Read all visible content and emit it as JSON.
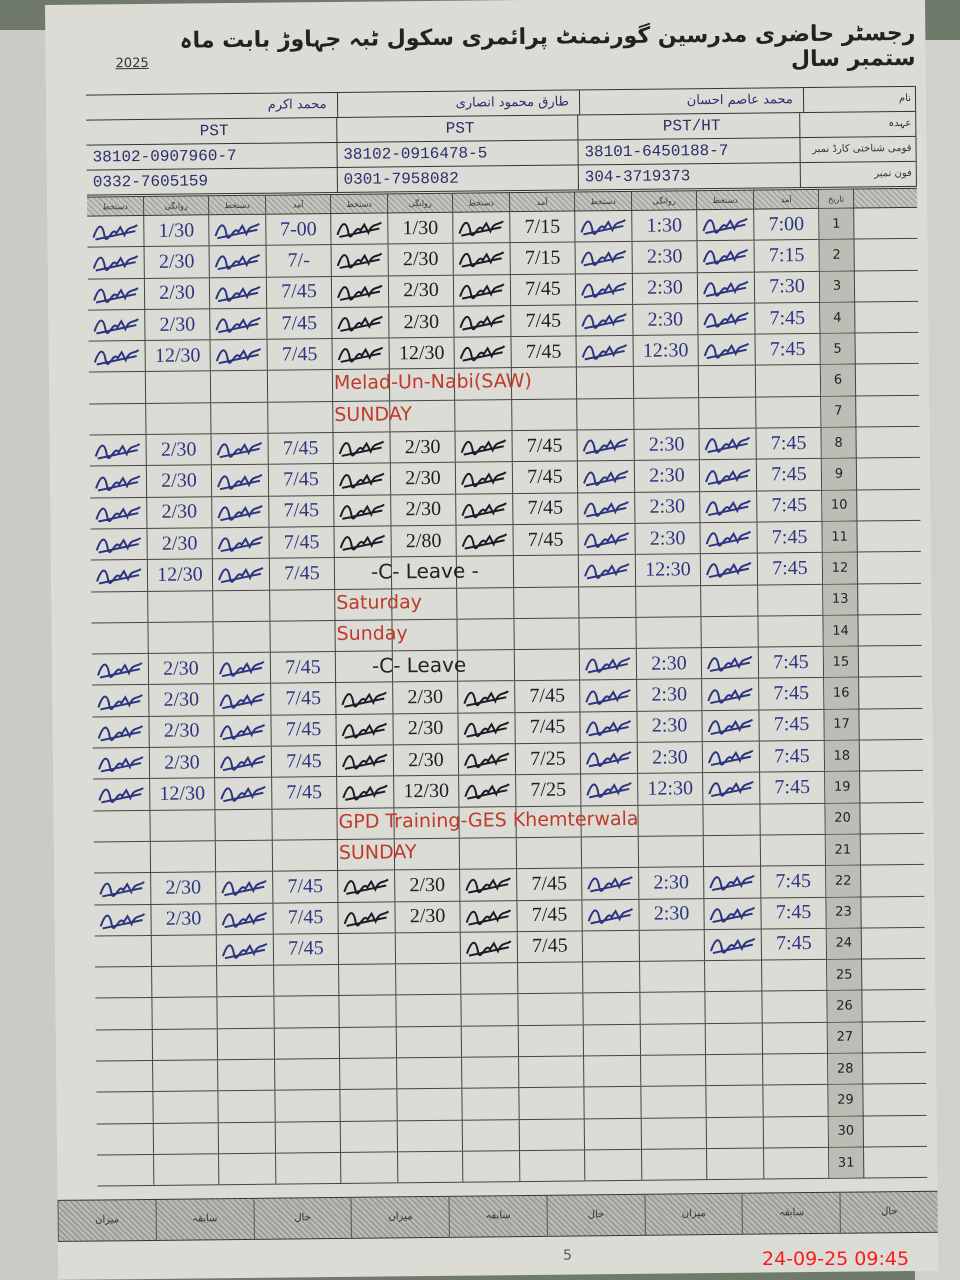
{
  "header": {
    "title": "رجسٹر حاضری مدرسین گورنمنٹ پرائمری سکول ٹبہ جہاوڑ بابت ماہ ستمبر سال",
    "year": "2025"
  },
  "info_labels": {
    "name": "نام",
    "designation": "عہدہ",
    "cnic": "قومی شناختی کارڈ نمبر",
    "phone": "فون نمبر"
  },
  "teachers": [
    {
      "name": "محمد عاصم احسان",
      "designation": "PST/HT",
      "cnic": "38101-6450188-7",
      "phone": "304-3719373"
    },
    {
      "name": "طارق محمود انصاری",
      "designation": "PST",
      "cnic": "38102-0916478-5",
      "phone": "0301-7958082"
    },
    {
      "name": "محمد اکرم",
      "designation": "PST",
      "cnic": "38102-0907960-7",
      "phone": "0332-7605159"
    }
  ],
  "column_headers": {
    "date": "تاریخ",
    "arrival": "آمد",
    "signature": "دستخط",
    "departure": "روانگی"
  },
  "rows": [
    {
      "date": "1",
      "t": [
        [
          "7:00",
          "1:30"
        ],
        [
          "7/15",
          "1/30"
        ],
        [
          "7-00",
          "1/30"
        ]
      ]
    },
    {
      "date": "2",
      "t": [
        [
          "7:15",
          "2:30"
        ],
        [
          "7/15",
          "2/30"
        ],
        [
          "7/-",
          "2/30"
        ]
      ]
    },
    {
      "date": "3",
      "t": [
        [
          "7:30",
          "2:30"
        ],
        [
          "7/45",
          "2/30"
        ],
        [
          "7/45",
          "2/30"
        ]
      ]
    },
    {
      "date": "4",
      "t": [
        [
          "7:45",
          "2:30"
        ],
        [
          "7/45",
          "2/30"
        ],
        [
          "7/45",
          "2/30"
        ]
      ]
    },
    {
      "date": "5",
      "t": [
        [
          "7:45",
          "12:30"
        ],
        [
          "7/45",
          "12/30"
        ],
        [
          "7/45",
          "12/30"
        ]
      ]
    },
    {
      "date": "6",
      "note": "Melad-Un-Nabi(SAW)"
    },
    {
      "date": "7",
      "note": "SUNDAY"
    },
    {
      "date": "8",
      "t": [
        [
          "7:45",
          "2:30"
        ],
        [
          "7/45",
          "2/30"
        ],
        [
          "7/45",
          "2/30"
        ]
      ]
    },
    {
      "date": "9",
      "t": [
        [
          "7:45",
          "2:30"
        ],
        [
          "7/45",
          "2/30"
        ],
        [
          "7/45",
          "2/30"
        ]
      ]
    },
    {
      "date": "10",
      "t": [
        [
          "7:45",
          "2:30"
        ],
        [
          "7/45",
          "2/30"
        ],
        [
          "7/45",
          "2/30"
        ]
      ]
    },
    {
      "date": "11",
      "t": [
        [
          "7:45",
          "2:30"
        ],
        [
          "7/45",
          "2/80"
        ],
        [
          "7/45",
          "2/30"
        ]
      ]
    },
    {
      "date": "12",
      "t": [
        [
          "7:45",
          "12:30"
        ],
        null,
        [
          "7/45",
          "12/30"
        ]
      ],
      "leave": "-C- Leave -"
    },
    {
      "date": "13",
      "note": "Saturday"
    },
    {
      "date": "14",
      "note": "Sunday"
    },
    {
      "date": "15",
      "t": [
        [
          "7:45",
          "2:30"
        ],
        null,
        [
          "7/45",
          "2/30"
        ]
      ],
      "leave": "-C- Leave"
    },
    {
      "date": "16",
      "t": [
        [
          "7:45",
          "2:30"
        ],
        [
          "7/45",
          "2/30"
        ],
        [
          "7/45",
          "2/30"
        ]
      ]
    },
    {
      "date": "17",
      "t": [
        [
          "7:45",
          "2:30"
        ],
        [
          "7/45",
          "2/30"
        ],
        [
          "7/45",
          "2/30"
        ]
      ]
    },
    {
      "date": "18",
      "t": [
        [
          "7:45",
          "2:30"
        ],
        [
          "7/25",
          "2/30"
        ],
        [
          "7/45",
          "2/30"
        ]
      ]
    },
    {
      "date": "19",
      "t": [
        [
          "7:45",
          "12:30"
        ],
        [
          "7/25",
          "12/30"
        ],
        [
          "7/45",
          "12/30"
        ]
      ]
    },
    {
      "date": "20",
      "note": "GPD Training-GES Khemterwala"
    },
    {
      "date": "21",
      "note": "SUNDAY"
    },
    {
      "date": "22",
      "t": [
        [
          "7:45",
          "2:30"
        ],
        [
          "7/45",
          "2/30"
        ],
        [
          "7/45",
          "2/30"
        ]
      ]
    },
    {
      "date": "23",
      "t": [
        [
          "7:45",
          "2:30"
        ],
        [
          "7/45",
          "2/30"
        ],
        [
          "7/45",
          "2/30"
        ]
      ]
    },
    {
      "date": "24",
      "t": [
        [
          "7:45",
          ""
        ],
        [
          "7/45",
          ""
        ],
        [
          "7/45",
          ""
        ]
      ]
    },
    {
      "date": "25"
    },
    {
      "date": "26"
    },
    {
      "date": "27"
    },
    {
      "date": "28"
    },
    {
      "date": "29"
    },
    {
      "date": "30"
    },
    {
      "date": "31"
    }
  ],
  "footer": [
    "حال",
    "سابقہ",
    "میزان",
    "حال",
    "سابقہ",
    "میزان",
    "حال",
    "سابقہ",
    "میزان"
  ],
  "page_mark": "5",
  "timestamp": "24-09-25  09:45",
  "colors": {
    "ink_blue": "#2b3580",
    "ink_red": "#c0392b",
    "stamp": "#ff1a1a"
  }
}
